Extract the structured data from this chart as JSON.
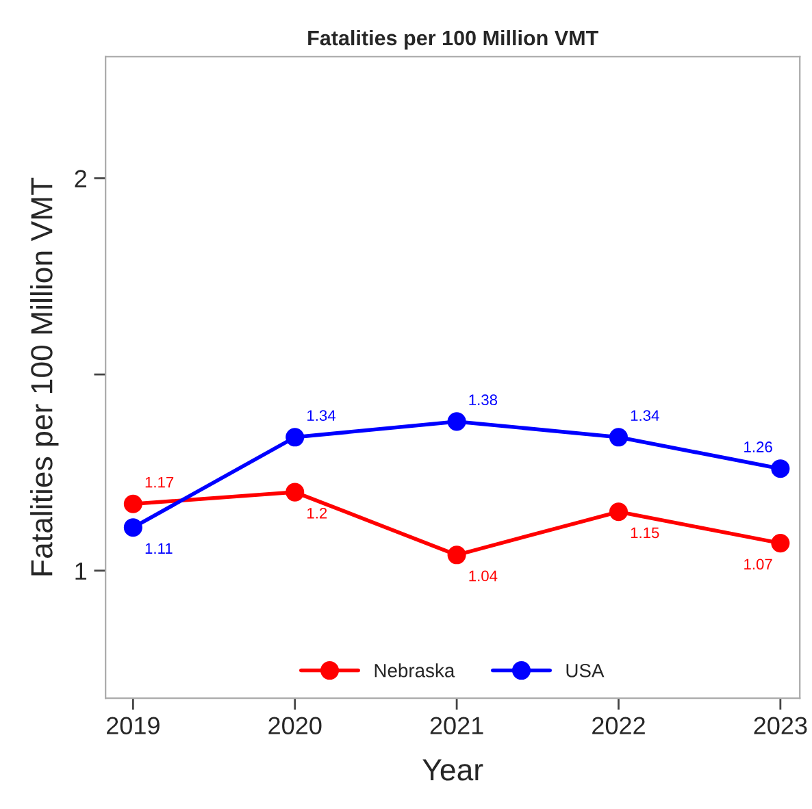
{
  "chart_data": {
    "type": "line",
    "title": "Fatalities per 100 Million VMT",
    "xlabel": "Year",
    "ylabel": "Fatalities per 100 Million VMT",
    "x": [
      2019,
      2020,
      2021,
      2022,
      2023
    ],
    "series": [
      {
        "name": "Nebraska",
        "color": "#ff0000",
        "values": [
          1.17,
          1.2,
          1.04,
          1.15,
          1.07
        ]
      },
      {
        "name": "USA",
        "color": "#0000ff",
        "values": [
          1.11,
          1.34,
          1.38,
          1.34,
          1.26
        ]
      }
    ],
    "xlim": [
      2018.83,
      2023.12
    ],
    "xticks": [
      2019,
      2020,
      2021,
      2022,
      2023
    ],
    "ylim": [
      0.675,
      2.31
    ],
    "yticks": [
      1,
      {
        "value": 1.5,
        "label": null
      },
      2
    ],
    "data_labels": true,
    "legend": "bottom",
    "grid": false,
    "marker": "circle",
    "line_style": "solid"
  }
}
